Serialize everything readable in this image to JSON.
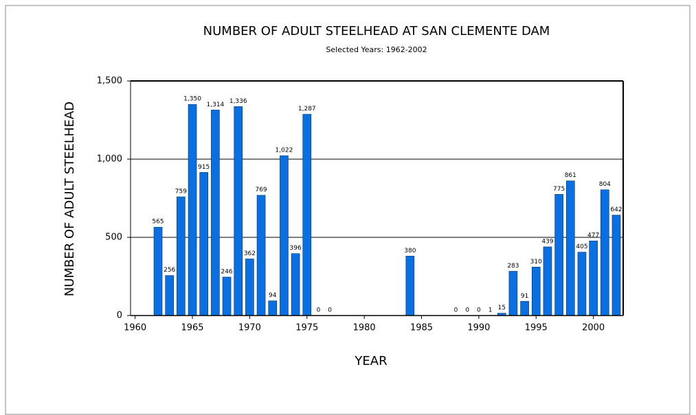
{
  "chart_data": {
    "type": "bar",
    "title": "NUMBER OF ADULT STEELHEAD AT SAN CLEMENTE DAM",
    "subtitle": "Selected Years:  1962-2002",
    "x_label": "YEAR",
    "y_label": "NUMBER OF ADULT STEELHEAD",
    "x": [
      1962,
      1963,
      1964,
      1965,
      1966,
      1967,
      1968,
      1969,
      1970,
      1971,
      1972,
      1973,
      1974,
      1975,
      1976,
      1977,
      1984,
      1988,
      1989,
      1990,
      1991,
      1992,
      1993,
      1994,
      1995,
      1996,
      1997,
      1998,
      1999,
      2000,
      2001,
      2002
    ],
    "values": [
      565,
      256,
      759,
      1350,
      915,
      1314,
      246,
      1336,
      362,
      769,
      94,
      1022,
      396,
      1287,
      0,
      0,
      380,
      0,
      0,
      0,
      1,
      15,
      283,
      91,
      310,
      439,
      775,
      861,
      405,
      477,
      804,
      642
    ],
    "value_labels": [
      "565",
      "256",
      "759",
      "1,350",
      "915",
      "1,314",
      "246",
      "1,336",
      "362",
      "769",
      "94",
      "1,022",
      "396",
      "1,287",
      "0",
      "0",
      "380",
      "0",
      "0",
      "0",
      "1",
      "15",
      "283",
      "91",
      "310",
      "439",
      "775",
      "861",
      "405",
      "477",
      "804",
      "642"
    ],
    "color": "#0a6fe0",
    "xlim": [
      1959.6,
      2002.6
    ],
    "xticks": [
      1960,
      1965,
      1970,
      1975,
      1980,
      1985,
      1990,
      1995,
      2000
    ],
    "ylim": [
      0,
      1500
    ],
    "yticks": [
      0,
      500,
      {
        "value": 1000,
        "label": "1,000"
      },
      {
        "value": 1500,
        "label": "1,500"
      }
    ],
    "grid": true
  }
}
